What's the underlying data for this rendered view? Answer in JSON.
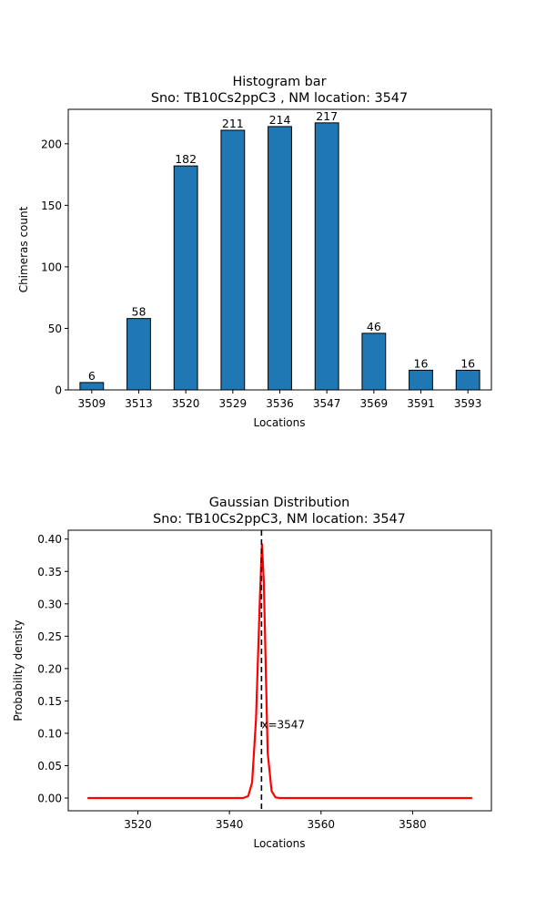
{
  "chart_data": [
    {
      "type": "bar",
      "title": "Histogram bar",
      "subtitle": "Sno: TB10Cs2ppC3 , NM location: 3547",
      "xlabel": "Locations",
      "ylabel": "Chimeras count",
      "categories": [
        "3509",
        "3513",
        "3520",
        "3529",
        "3536",
        "3547",
        "3569",
        "3591",
        "3593"
      ],
      "values": [
        6,
        58,
        182,
        211,
        214,
        217,
        46,
        16,
        16
      ],
      "data_labels": [
        "6",
        "58",
        "182",
        "211",
        "214",
        "217",
        "46",
        "16",
        "16"
      ],
      "ylim": [
        0,
        228
      ],
      "yticks": [
        0,
        50,
        100,
        150,
        200
      ],
      "bar_color": "#1f77b4",
      "edge_color": "#000000",
      "grid": false
    },
    {
      "type": "line",
      "title": "Gaussian Distribution",
      "subtitle": "Sno: TB10Cs2ppC3, NM location: 3547",
      "xlabel": "Locations",
      "ylabel": "Probability density",
      "xlim": [
        3504.8,
        3597.2
      ],
      "ylim": [
        -0.0197,
        0.4137
      ],
      "xticks": [
        3520,
        3540,
        3560,
        3580
      ],
      "yticks": [
        0.0,
        0.05,
        0.1,
        0.15,
        0.2,
        0.25,
        0.3,
        0.35,
        0.4
      ],
      "ytick_labels": [
        "0.00",
        "0.05",
        "0.10",
        "0.15",
        "0.20",
        "0.25",
        "0.30",
        "0.35",
        "0.40"
      ],
      "series": [
        {
          "color": "#ff0000",
          "x": [
            3509,
            3543.0,
            3544.1,
            3544.95,
            3545.8,
            3546.65,
            3547.1,
            3547.5,
            3548.35,
            3549.2,
            3550.05,
            3551.0,
            3593
          ],
          "y": [
            0.0,
            0.0,
            0.003,
            0.024,
            0.122,
            0.31,
            0.392,
            0.335,
            0.07,
            0.011,
            0.001,
            0.0,
            0.0
          ]
        }
      ],
      "vline": {
        "x": 3547,
        "color": "#000000",
        "style": "dashed"
      },
      "annotation": {
        "text": "x=3547",
        "x": 3547,
        "y": 0.105
      },
      "grid": false
    }
  ]
}
